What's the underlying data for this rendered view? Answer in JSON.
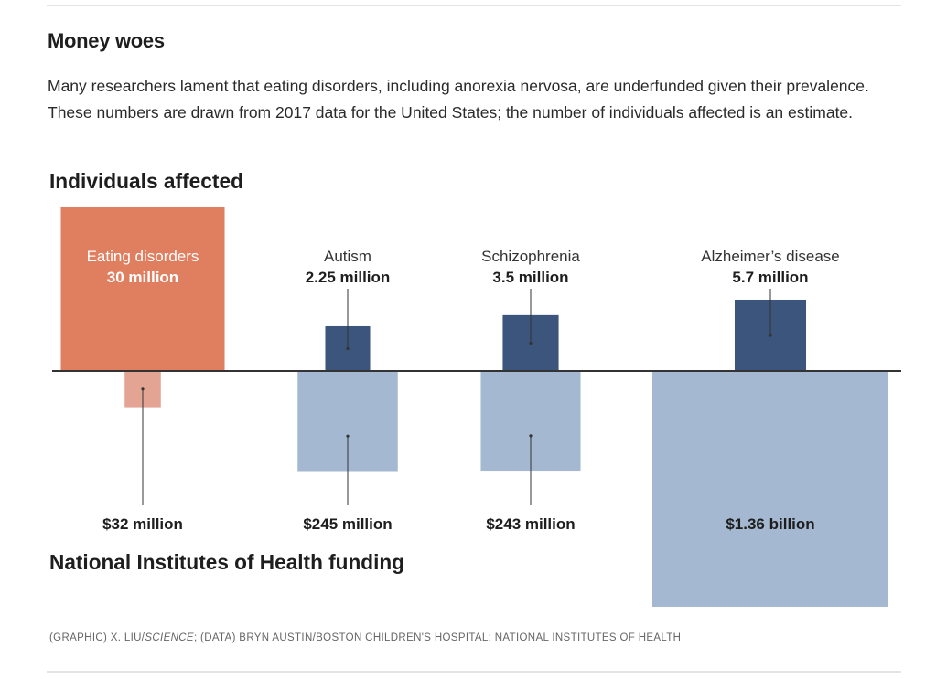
{
  "header": {
    "title": "Money woes",
    "description": "Many researchers lament that eating disorders, including anorexia nervosa, are underfunded given their prevalence. These numbers are drawn from 2017 data for the United States; the number of individuals affected is an estimate."
  },
  "credit": {
    "prefix": "(GRAPHIC) X. LIU/",
    "publication": "SCIENCE",
    "suffix": "; (DATA) BRYN AUSTIN/BOSTON CHILDREN'S HOSPITAL; NATIONAL INSTITUTES OF HEALTH"
  },
  "colors": {
    "eating_affected": "#e07e60",
    "eating_funding": "#e4a494",
    "other_affected": "#3b557c",
    "other_funding": "#a4b9d1",
    "baseline": "#333333",
    "leader": "#333333"
  },
  "chart_data": {
    "type": "bar",
    "subtype": "diverging-area-squares",
    "top_label": "Individuals affected",
    "bottom_label": "National Institutes of Health funding",
    "categories": [
      "Eating disorders",
      "Autism",
      "Schizophrenia",
      "Alzheimer's disease"
    ],
    "series": [
      {
        "name": "Individuals affected",
        "unit": "million people",
        "direction": "up",
        "values": [
          30,
          2.25,
          3.5,
          5.7
        ],
        "labels": [
          "30 million",
          "2.25 million",
          "3.5 million",
          "5.7 million"
        ]
      },
      {
        "name": "National Institutes of Health funding",
        "unit": "million USD",
        "direction": "down",
        "values": [
          32,
          245,
          243,
          1360
        ],
        "labels": [
          "$32 million",
          "$245 million",
          "$243 million",
          "$1.36 billion"
        ]
      }
    ],
    "highlight_category": "Eating disorders",
    "category_display": [
      "Eating disorders",
      "Autism",
      "Schizophrenia",
      "Alzheimer’s disease"
    ]
  }
}
